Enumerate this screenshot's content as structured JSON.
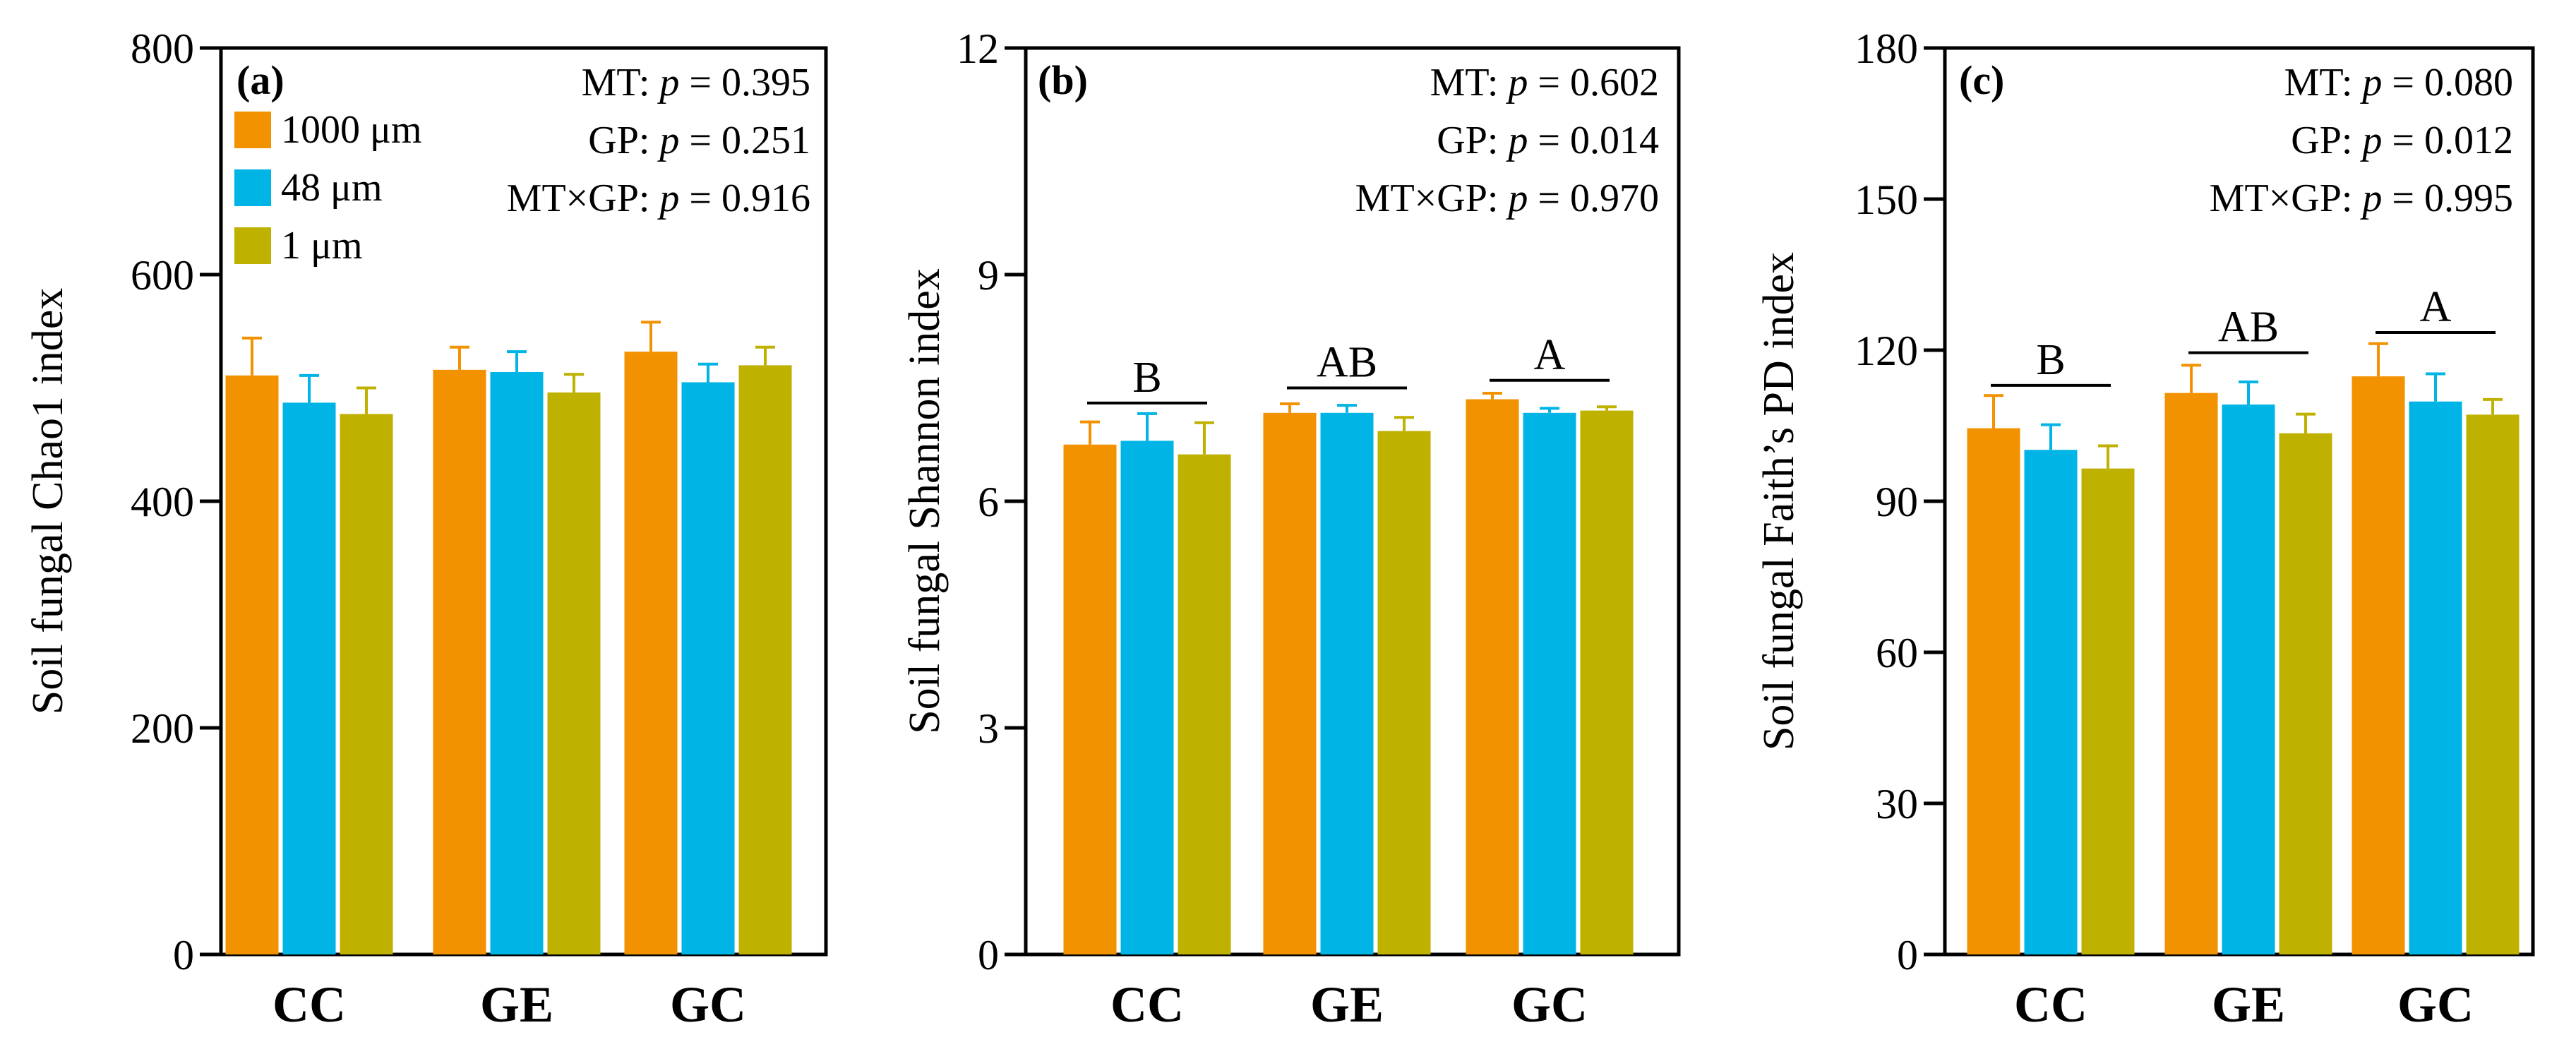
{
  "chart_data": [
    {
      "type": "bar",
      "panel_label": "(a)",
      "ylabel": "Soil fungal Chao1 index",
      "ylim": [
        0,
        800
      ],
      "yticks": [
        0,
        200,
        400,
        600,
        800
      ],
      "categories": [
        "CC",
        "GE",
        "GC"
      ],
      "series": [
        {
          "name": "1000 μm",
          "color": "#F39200",
          "values": [
            511,
            516,
            532
          ],
          "errors": [
            33,
            20,
            26
          ]
        },
        {
          "name": "48 μm",
          "color": "#00B4E6",
          "values": [
            487,
            514,
            505
          ],
          "errors": [
            24,
            18,
            16
          ]
        },
        {
          "name": "1 μm",
          "color": "#BFB100",
          "values": [
            477,
            496,
            520
          ],
          "errors": [
            23,
            16,
            16
          ]
        }
      ],
      "stats": [
        {
          "label": "MT: ",
          "p": "p",
          "value": " = 0.395"
        },
        {
          "label": "GP: ",
          "p": "p",
          "value": " = 0.251"
        },
        {
          "label": "MT×GP: ",
          "p": "p",
          "value": " = 0.916"
        }
      ],
      "significance": [],
      "legend": {
        "location": "top-left"
      }
    },
    {
      "type": "bar",
      "panel_label": "(b)",
      "ylabel": "Soil fungal Shannon index",
      "ylim": [
        0,
        12
      ],
      "yticks": [
        0,
        3,
        6,
        9,
        12
      ],
      "categories": [
        "CC",
        "GE",
        "GC"
      ],
      "series": [
        {
          "name": "1000 μm",
          "color": "#F39200",
          "values": [
            6.75,
            7.17,
            7.35
          ],
          "errors": [
            0.3,
            0.12,
            0.08
          ]
        },
        {
          "name": "48 μm",
          "color": "#00B4E6",
          "values": [
            6.8,
            7.17,
            7.17
          ],
          "errors": [
            0.36,
            0.1,
            0.06
          ]
        },
        {
          "name": "1 μm",
          "color": "#BFB100",
          "values": [
            6.62,
            6.93,
            7.2
          ],
          "errors": [
            0.42,
            0.18,
            0.05
          ]
        }
      ],
      "stats": [
        {
          "label": "MT: ",
          "p": "p",
          "value": " = 0.602"
        },
        {
          "label": "GP: ",
          "p": "p",
          "value": " = 0.014"
        },
        {
          "label": "MT×GP: ",
          "p": "p",
          "value": " = 0.970"
        }
      ],
      "significance": [
        {
          "category": "CC",
          "letter": "B",
          "line_y": 7.3
        },
        {
          "category": "GE",
          "letter": "AB",
          "line_y": 7.5
        },
        {
          "category": "GC",
          "letter": "A",
          "line_y": 7.6
        }
      ]
    },
    {
      "type": "bar",
      "panel_label": "(c)",
      "ylabel": "Soil fungal Faith’s PD index",
      "ylim": [
        0,
        180
      ],
      "yticks": [
        0,
        30,
        60,
        90,
        120,
        150,
        180
      ],
      "categories": [
        "CC",
        "GE",
        "GC"
      ],
      "series": [
        {
          "name": "1000 μm",
          "color": "#F39200",
          "values": [
            104.5,
            111.5,
            114.8
          ],
          "errors": [
            6.5,
            5.5,
            6.5
          ]
        },
        {
          "name": "48 μm",
          "color": "#00B4E6",
          "values": [
            100.2,
            109.2,
            109.8
          ],
          "errors": [
            5.0,
            4.5,
            5.5
          ]
        },
        {
          "name": "1 μm",
          "color": "#BFB100",
          "values": [
            96.5,
            103.5,
            107.2
          ],
          "errors": [
            4.5,
            3.8,
            3.0
          ]
        }
      ],
      "stats": [
        {
          "label": "MT: ",
          "p": "p",
          "value": " = 0.080"
        },
        {
          "label": "GP: ",
          "p": "p",
          "value": " = 0.012"
        },
        {
          "label": "MT×GP: ",
          "p": "p",
          "value": " = 0.995"
        }
      ],
      "significance": [
        {
          "category": "CC",
          "letter": "B",
          "line_y": 113
        },
        {
          "category": "GE",
          "letter": "AB",
          "line_y": 119.5
        },
        {
          "category": "GC",
          "letter": "A",
          "line_y": 123.5
        }
      ]
    }
  ]
}
